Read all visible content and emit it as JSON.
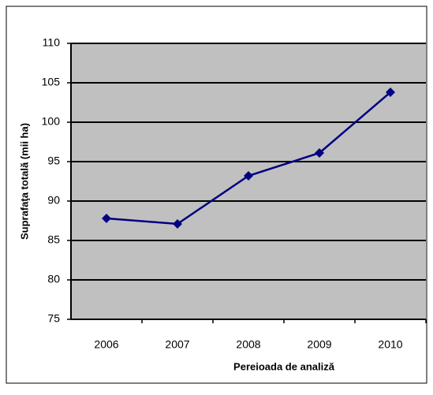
{
  "chart_data": {
    "type": "line",
    "categories": [
      "2006",
      "2007",
      "2008",
      "2009",
      "2010"
    ],
    "series": [
      {
        "name": "Suprafaţa totală",
        "color": "#000080",
        "values": [
          87.8,
          87.1,
          93.2,
          96.1,
          103.8
        ]
      }
    ],
    "ylim": [
      75,
      110
    ],
    "yticks": [
      75,
      80,
      85,
      90,
      95,
      100,
      105,
      110
    ],
    "grid": true,
    "x_label": "Pereioada de analiză",
    "y_label": "Suprafaţa totală (mii ha)",
    "plot_background": "#c0c0c0"
  }
}
